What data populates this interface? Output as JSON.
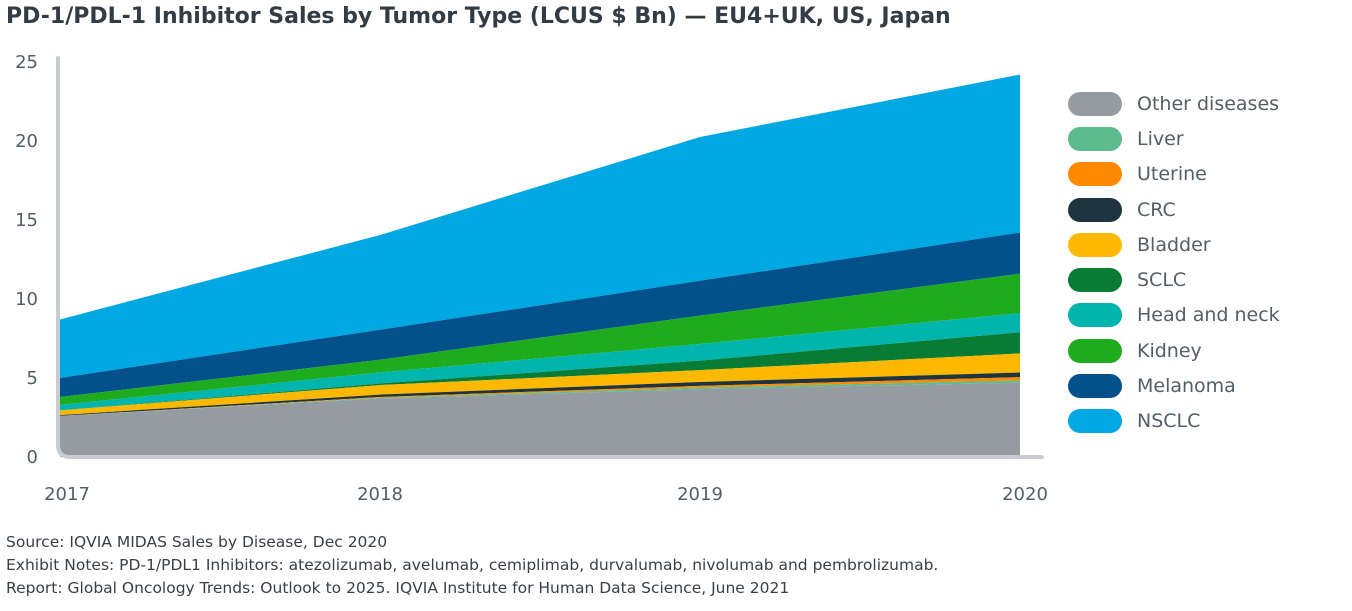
{
  "chart_data": {
    "type": "area",
    "stacked": true,
    "title": "PD-1/PDL-1 Inhibitor Sales by Tumor Type (LCUS $ Bn) — EU4+UK, US, Japan",
    "xlabel": "",
    "ylabel": "",
    "x": [
      "2017",
      "2018",
      "2019",
      "2020"
    ],
    "ylim": [
      0,
      25
    ],
    "yticks": [
      "0",
      "5",
      "10",
      "15",
      "20",
      "25"
    ],
    "grid": false,
    "legend_position": "right",
    "series": [
      {
        "name": "Other diseases",
        "color": "#949ca2",
        "values": [
          2.6,
          3.7,
          4.3,
          4.7
        ]
      },
      {
        "name": "Liver",
        "color": "#5dbb8e",
        "values": [
          0.0,
          0.05,
          0.1,
          0.15
        ]
      },
      {
        "name": "Uterine",
        "color": "#ff8a00",
        "values": [
          0.0,
          0.05,
          0.1,
          0.2
        ]
      },
      {
        "name": "CRC",
        "color": "#1e3540",
        "values": [
          0.05,
          0.15,
          0.25,
          0.3
        ]
      },
      {
        "name": "Bladder",
        "color": "#ffb800",
        "values": [
          0.3,
          0.6,
          0.75,
          1.2
        ]
      },
      {
        "name": "SCLC",
        "color": "#087c35",
        "values": [
          0.0,
          0.1,
          0.6,
          1.35
        ]
      },
      {
        "name": "Head and neck",
        "color": "#00b5ad",
        "values": [
          0.35,
          0.7,
          1.05,
          1.2
        ]
      },
      {
        "name": "Kidney",
        "color": "#1eab1e",
        "values": [
          0.5,
          0.8,
          1.8,
          2.5
        ]
      },
      {
        "name": "Melanoma",
        "color": "#04508a",
        "values": [
          1.2,
          1.9,
          2.2,
          2.6
        ]
      },
      {
        "name": "NSCLC",
        "color": "#00a8e3",
        "values": [
          3.7,
          6.0,
          9.1,
          10.0
        ]
      }
    ]
  },
  "footer": {
    "source": "Source: IQVIA MIDAS Sales by Disease, Dec 2020",
    "notes": "Exhibit Notes: PD-1/PDL1 Inhibitors: atezolizumab, avelumab, cemiplimab, durvalumab, nivolumab and pembrolizumab.",
    "report": "Report: Global Oncology Trends: Outlook to 2025. IQVIA Institute for Human Data Science, June 2021"
  }
}
